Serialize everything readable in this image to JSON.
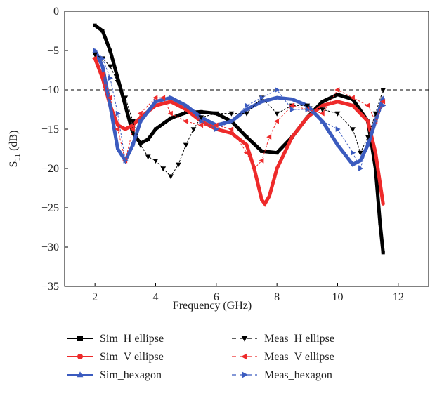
{
  "chart_data": {
    "type": "line",
    "xlabel": "Frequency (GHz)",
    "ylabel": {
      "main": "S",
      "sub": "11",
      "unit": "(dB)"
    },
    "xlim": [
      1,
      13
    ],
    "xticks": [
      2,
      4,
      6,
      8,
      10,
      12
    ],
    "ylim": [
      -35,
      0
    ],
    "yticks": [
      0,
      {
        "value": -5,
        "label": "−5"
      },
      {
        "value": -10,
        "label": "−10"
      },
      {
        "value": -15,
        "label": "−15"
      },
      {
        "value": -20,
        "label": "−20"
      },
      {
        "value": -25,
        "label": "−25"
      },
      {
        "value": -30,
        "label": "−30"
      },
      {
        "value": -35,
        "label": "−35"
      }
    ],
    "reference_line": -10,
    "legend": "bottom",
    "series": [
      {
        "name": "Sim_H ellipse",
        "color": "#000000",
        "marker": "square",
        "dash": "solid",
        "x": [
          2,
          2.25,
          2.5,
          2.75,
          3,
          3.25,
          3.5,
          3.75,
          4,
          4.5,
          5,
          5.5,
          6,
          6.5,
          7,
          7.5,
          8,
          8.5,
          9,
          9.5,
          10,
          10.5,
          11,
          11.25,
          11.4,
          11.5
        ],
        "values": [
          -1.8,
          -2.5,
          -5,
          -8.5,
          -12,
          -15.5,
          -16.8,
          -16.3,
          -15,
          -13.6,
          -12.9,
          -12.8,
          -13,
          -14,
          -16,
          -17.8,
          -18,
          -16,
          -13.5,
          -11.5,
          -10.6,
          -11.2,
          -14,
          -20,
          -27,
          -30.7
        ]
      },
      {
        "name": "Sim_V ellipse",
        "color": "#ee2a2a",
        "marker": "circle",
        "dash": "solid",
        "x": [
          2,
          2.25,
          2.5,
          2.75,
          3,
          3.25,
          3.5,
          4,
          4.5,
          5,
          5.5,
          6,
          6.5,
          7,
          7.25,
          7.5,
          7.6,
          7.75,
          8,
          8.5,
          9,
          9.5,
          10,
          10.5,
          11,
          11.25,
          11.5
        ],
        "values": [
          -6,
          -8.5,
          -12,
          -14.5,
          -15,
          -14.5,
          -13.5,
          -12,
          -11.5,
          -12.5,
          -14,
          -15,
          -15.5,
          -17,
          -20,
          -24,
          -24.5,
          -23.5,
          -20,
          -16,
          -13.5,
          -12,
          -11.5,
          -12,
          -14,
          -18,
          -24.5
        ]
      },
      {
        "name": "Sim_hexagon",
        "color": "#3b5bbf",
        "marker": "triangle-up",
        "dash": "solid",
        "x": [
          2,
          2.25,
          2.5,
          2.75,
          3,
          3.25,
          3.5,
          4,
          4.5,
          5,
          5.5,
          6,
          6.5,
          7,
          7.5,
          8,
          8.5,
          9,
          9.5,
          10,
          10.5,
          10.75,
          11,
          11.25,
          11.5
        ],
        "values": [
          -5,
          -7,
          -12,
          -17.5,
          -19,
          -17,
          -14,
          -11.5,
          -11,
          -12,
          -13.5,
          -14.5,
          -14,
          -12.5,
          -11.5,
          -11,
          -11.2,
          -12,
          -14,
          -17,
          -19.5,
          -19,
          -17,
          -14,
          -11
        ]
      },
      {
        "name": "Meas_H ellipse",
        "color": "#000000",
        "marker": "triangle-down",
        "dash": "dashed",
        "x": [
          2,
          2.25,
          2.5,
          2.75,
          3,
          3.25,
          3.5,
          3.75,
          4,
          4.25,
          4.5,
          4.75,
          5,
          5.25,
          5.5,
          6,
          6.5,
          7,
          7.5,
          8,
          8.5,
          9,
          9.5,
          10,
          10.5,
          10.75,
          11,
          11.25,
          11.5
        ],
        "values": [
          -5.5,
          -6,
          -7,
          -9,
          -11,
          -14,
          -17,
          -18.5,
          -19,
          -20,
          -21,
          -19.5,
          -17,
          -15,
          -13.5,
          -13,
          -13,
          -13,
          -11,
          -13,
          -12,
          -12,
          -12.5,
          -13,
          -15,
          -18,
          -16,
          -13,
          -10
        ]
      },
      {
        "name": "Meas_V ellipse",
        "color": "#ee2a2a",
        "marker": "triangle-left",
        "dash": "dashed",
        "x": [
          2,
          2.25,
          2.5,
          2.75,
          3,
          3.25,
          3.5,
          4,
          4.25,
          4.5,
          5,
          5.5,
          6,
          6.5,
          7,
          7.25,
          7.5,
          7.75,
          8,
          8.5,
          9,
          9.5,
          10,
          10.5,
          11,
          11.25,
          11.5
        ],
        "values": [
          -6,
          -8,
          -11,
          -15,
          -19,
          -15,
          -13,
          -11,
          -11,
          -13,
          -14,
          -14.5,
          -14.5,
          -15,
          -18,
          -20,
          -19,
          -16,
          -14,
          -12,
          -12.5,
          -13,
          -10,
          -11,
          -12,
          -14,
          -11.5
        ]
      },
      {
        "name": "Meas_hexagon",
        "color": "#3b5bbf",
        "marker": "triangle-right",
        "dash": "dashed",
        "x": [
          2,
          2.25,
          2.5,
          2.75,
          3,
          3.25,
          3.5,
          4,
          4.5,
          5,
          5.5,
          6,
          6.5,
          7,
          7.5,
          8,
          8.5,
          9,
          9.5,
          10,
          10.5,
          10.75,
          11,
          11.25,
          11.5
        ],
        "values": [
          -5,
          -6,
          -8.5,
          -13,
          -19,
          -17,
          -14,
          -11.5,
          -11,
          -12,
          -14,
          -15,
          -14,
          -12,
          -11,
          -10,
          -12.5,
          -12.5,
          -14,
          -15,
          -18,
          -20,
          -17,
          -14,
          -12
        ]
      }
    ]
  }
}
